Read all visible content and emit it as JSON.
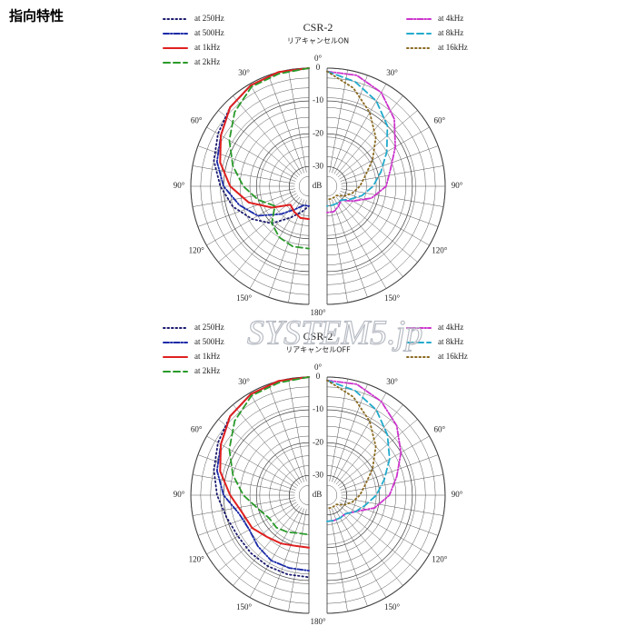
{
  "page_title": "指向特性",
  "watermark": "SYSTEM5.jp",
  "chart_data": [
    {
      "type": "polar",
      "title": "CSR-2",
      "subtitle": "リアキャンセルON",
      "theta": [
        0,
        15,
        30,
        45,
        60,
        75,
        90,
        105,
        120,
        135,
        150,
        165,
        180
      ],
      "rlim": [
        -36,
        0
      ],
      "rticks": [
        0,
        -10,
        -20,
        -30
      ],
      "r_label": "dB",
      "theta_ticks": [
        {
          "value": 0,
          "label": "0°"
        },
        {
          "value": 30,
          "label": "30°"
        },
        {
          "value": 60,
          "label": "60°"
        },
        {
          "value": 90,
          "label": "90°"
        },
        {
          "value": 120,
          "label": "120°"
        },
        {
          "value": 150,
          "label": "150°"
        },
        {
          "value": 180,
          "label": "180°"
        }
      ],
      "grid": true,
      "series": [
        {
          "name": "at 250Hz",
          "color": "#1a1a6e",
          "style": "dotted",
          "side": "left",
          "values": [
            0,
            0,
            -0.5,
            -2,
            -4,
            -6,
            -9,
            -12,
            -16,
            -20,
            -25,
            -28,
            -30
          ]
        },
        {
          "name": "at 500Hz",
          "color": "#1a2aa8",
          "style": "dashdot",
          "side": "left",
          "values": [
            0,
            0,
            -0.5,
            -2,
            -5,
            -7,
            -10,
            -14,
            -18,
            -24,
            -28,
            -30,
            -30
          ]
        },
        {
          "name": "at 1kHz",
          "color": "#e02020",
          "style": "solid",
          "side": "left",
          "values": [
            0,
            0,
            -0.5,
            -2,
            -5,
            -8,
            -12,
            -17,
            -23,
            -28,
            -27,
            -26,
            -26
          ]
        },
        {
          "name": "at 2kHz",
          "color": "#2a9a2a",
          "style": "dashed",
          "side": "left",
          "values": [
            0,
            -0.5,
            -1,
            -4,
            -8,
            -12,
            -16,
            -20,
            -24,
            -20,
            -18,
            -17,
            -17
          ]
        },
        {
          "name": "at 4kHz",
          "color": "#cc33cc",
          "style": "dashdot",
          "side": "right",
          "values": [
            -1,
            -1,
            -3,
            -7,
            -12,
            -16,
            -18,
            -22,
            -27,
            -30,
            -29,
            -28,
            -28
          ]
        },
        {
          "name": "at 8kHz",
          "color": "#22aacc",
          "style": "dashed",
          "side": "right",
          "values": [
            -1,
            -3,
            -6,
            -10,
            -15,
            -19,
            -22,
            -25,
            -28,
            -30,
            -30,
            -30,
            -30
          ]
        },
        {
          "name": "at 16kHz",
          "color": "#8a6a20",
          "style": "dotted",
          "side": "right",
          "values": [
            -1,
            -5,
            -10,
            -15,
            -20,
            -24,
            -26,
            -28,
            -30,
            -32,
            -32,
            -32,
            -32
          ]
        }
      ]
    },
    {
      "type": "polar",
      "title": "CSR-2",
      "subtitle": "リアキャンセルOFF",
      "theta": [
        0,
        15,
        30,
        45,
        60,
        75,
        90,
        105,
        120,
        135,
        150,
        165,
        180
      ],
      "rlim": [
        -36,
        0
      ],
      "rticks": [
        0,
        -10,
        -20,
        -30
      ],
      "r_label": "dB",
      "theta_ticks": [
        {
          "value": 0,
          "label": "0°"
        },
        {
          "value": 30,
          "label": "30°"
        },
        {
          "value": 60,
          "label": "60°"
        },
        {
          "value": 90,
          "label": "90°"
        },
        {
          "value": 120,
          "label": "120°"
        },
        {
          "value": 150,
          "label": "150°"
        },
        {
          "value": 180,
          "label": "180°"
        }
      ],
      "grid": true,
      "series": [
        {
          "name": "at 250Hz",
          "color": "#1a1a6e",
          "style": "dotted",
          "side": "left",
          "values": [
            0,
            0,
            -0.5,
            -2,
            -4,
            -6,
            -8,
            -10,
            -11,
            -11,
            -11,
            -11,
            -11
          ]
        },
        {
          "name": "at 500Hz",
          "color": "#1a2aa8",
          "style": "dashdot",
          "side": "left",
          "values": [
            0,
            0,
            -0.5,
            -2,
            -5,
            -7,
            -10,
            -14,
            -15,
            -14,
            -13,
            -13,
            -13
          ]
        },
        {
          "name": "at 1kHz",
          "color": "#e02020",
          "style": "solid",
          "side": "left",
          "values": [
            0,
            0,
            -0.5,
            -2,
            -5,
            -8,
            -12,
            -15,
            -16,
            -18,
            -19,
            -20,
            -20
          ]
        },
        {
          "name": "at 2kHz",
          "color": "#2a9a2a",
          "style": "dashed",
          "side": "left",
          "values": [
            0,
            -0.5,
            -1,
            -4,
            -8,
            -12,
            -16,
            -20,
            -22,
            -22,
            -23,
            -24,
            -24
          ]
        },
        {
          "name": "at 4kHz",
          "color": "#cc33cc",
          "style": "dashdot",
          "side": "right",
          "values": [
            -1,
            -1,
            -3,
            -6,
            -10,
            -14,
            -17,
            -21,
            -26,
            -28,
            -28,
            -28,
            -28
          ]
        },
        {
          "name": "at 8kHz",
          "color": "#22aacc",
          "style": "dashed",
          "side": "right",
          "values": [
            -1,
            -3,
            -6,
            -10,
            -14,
            -18,
            -21,
            -24,
            -26,
            -28,
            -28,
            -28,
            -28
          ]
        },
        {
          "name": "at 16kHz",
          "color": "#8a6a20",
          "style": "dotted",
          "side": "right",
          "values": [
            -1,
            -5,
            -10,
            -15,
            -20,
            -24,
            -26,
            -28,
            -30,
            -32,
            -32,
            -32,
            -32
          ]
        }
      ]
    }
  ]
}
